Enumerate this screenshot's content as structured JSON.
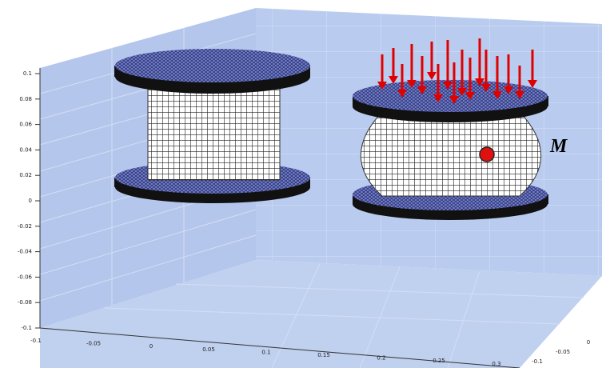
{
  "axes": {
    "z_ticks": [
      "0.1",
      "0.08",
      "0.06",
      "0.04",
      "0.02",
      "0",
      "-0.02",
      "-0.04",
      "-0.06",
      "-0.08",
      "-0.1"
    ],
    "x_ticks": [
      "-0.1",
      "-0.05",
      "0",
      "0.05",
      "0.1",
      "0.15",
      "0.2",
      "0.25",
      "0.3"
    ],
    "y_ticks": [
      "-0.1",
      "-0.05",
      "0"
    ]
  },
  "annotation": "M"
}
